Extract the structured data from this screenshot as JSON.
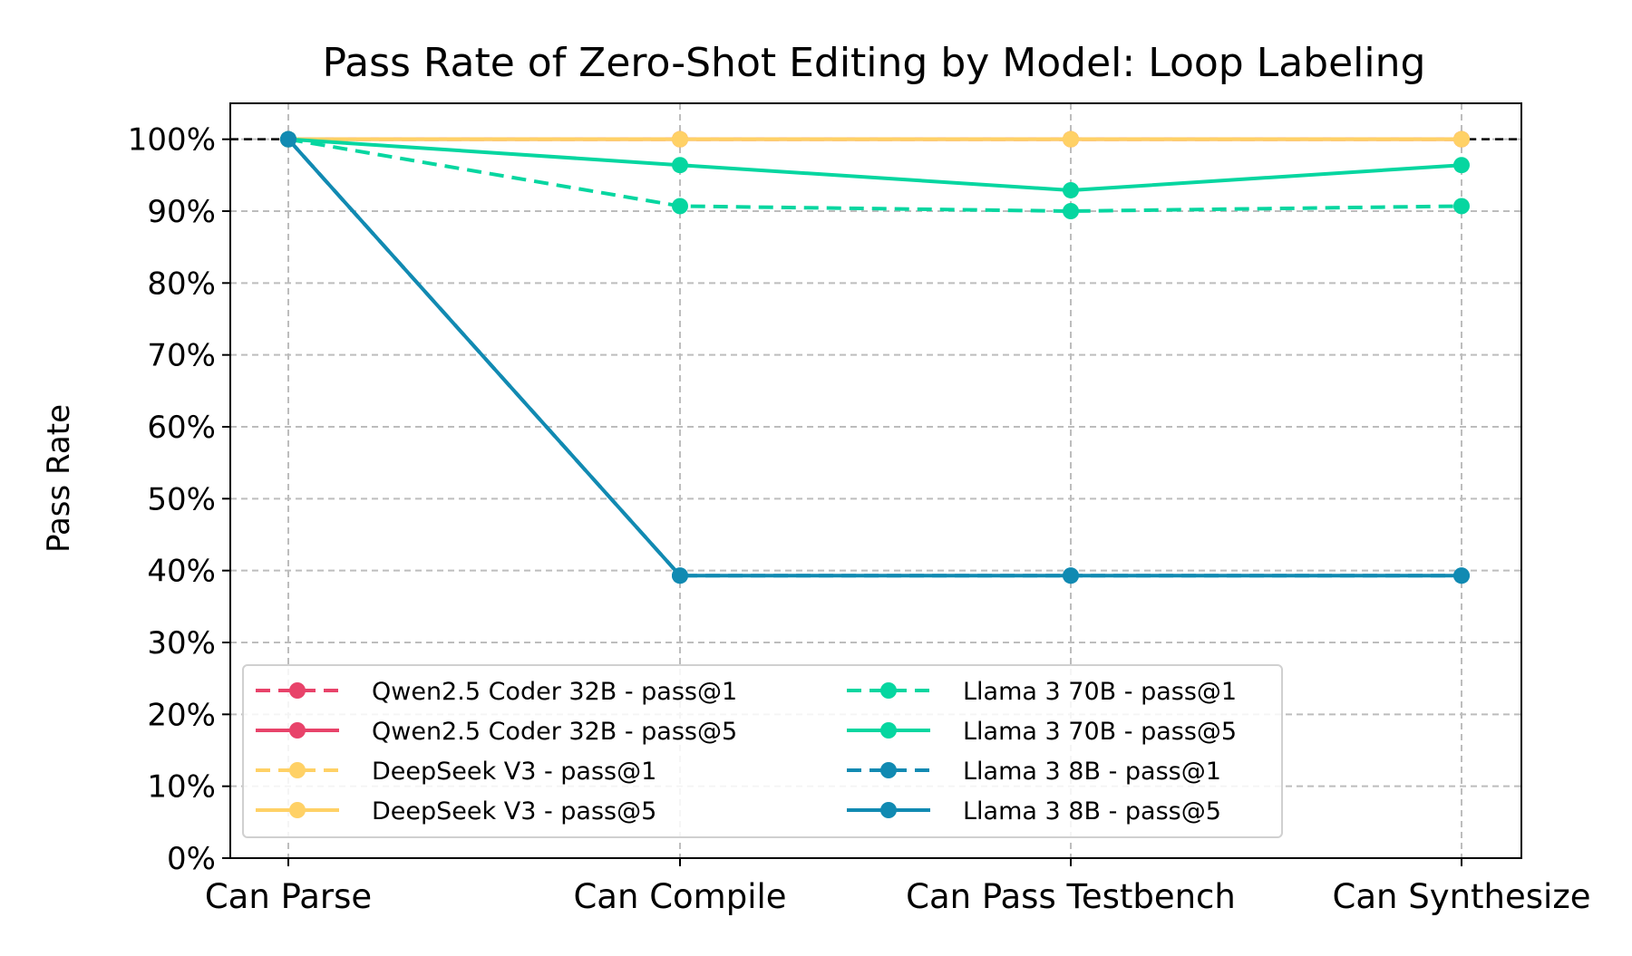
{
  "chart_data": {
    "type": "line",
    "title": "Pass Rate of Zero-Shot Editing by Model: Loop Labeling",
    "xlabel": "",
    "ylabel": "Pass Rate",
    "categories": [
      "Can Parse",
      "Can Compile",
      "Can Pass Testbench",
      "Can Synthesize"
    ],
    "ylim": [
      0,
      105
    ],
    "yticks": [
      0,
      10,
      20,
      30,
      40,
      50,
      60,
      70,
      80,
      90,
      100
    ],
    "ytick_labels": [
      "0%",
      "10%",
      "20%",
      "30%",
      "40%",
      "50%",
      "60%",
      "70%",
      "80%",
      "90%",
      "100%"
    ],
    "grid": true,
    "reference_line": 100,
    "legend_position": "lower-left",
    "series": [
      {
        "name": "Qwen2.5 Coder 32B - pass@1",
        "color": "#e8436a",
        "dash": "dashed",
        "values": [
          100,
          100,
          100,
          100
        ]
      },
      {
        "name": "Qwen2.5 Coder 32B - pass@5",
        "color": "#e8436a",
        "dash": "solid",
        "values": [
          100,
          100,
          100,
          100
        ]
      },
      {
        "name": "DeepSeek V3 - pass@1",
        "color": "#ffd166",
        "dash": "dashed",
        "values": [
          100,
          100,
          100,
          100
        ]
      },
      {
        "name": "DeepSeek V3 - pass@5",
        "color": "#ffd166",
        "dash": "solid",
        "values": [
          100,
          100,
          100,
          100
        ]
      },
      {
        "name": "Llama 3 70B - pass@1",
        "color": "#06d6a0",
        "dash": "dashed",
        "values": [
          100,
          90.7,
          90.0,
          90.7
        ]
      },
      {
        "name": "Llama 3 70B - pass@5",
        "color": "#06d6a0",
        "dash": "solid",
        "values": [
          100,
          96.4,
          92.9,
          96.4
        ]
      },
      {
        "name": "Llama 3 8B - pass@1",
        "color": "#118ab2",
        "dash": "dashed",
        "values": [
          100,
          39.3,
          39.3,
          39.3
        ]
      },
      {
        "name": "Llama 3 8B - pass@5",
        "color": "#118ab2",
        "dash": "solid",
        "values": [
          100,
          39.3,
          39.3,
          39.3
        ]
      }
    ]
  }
}
